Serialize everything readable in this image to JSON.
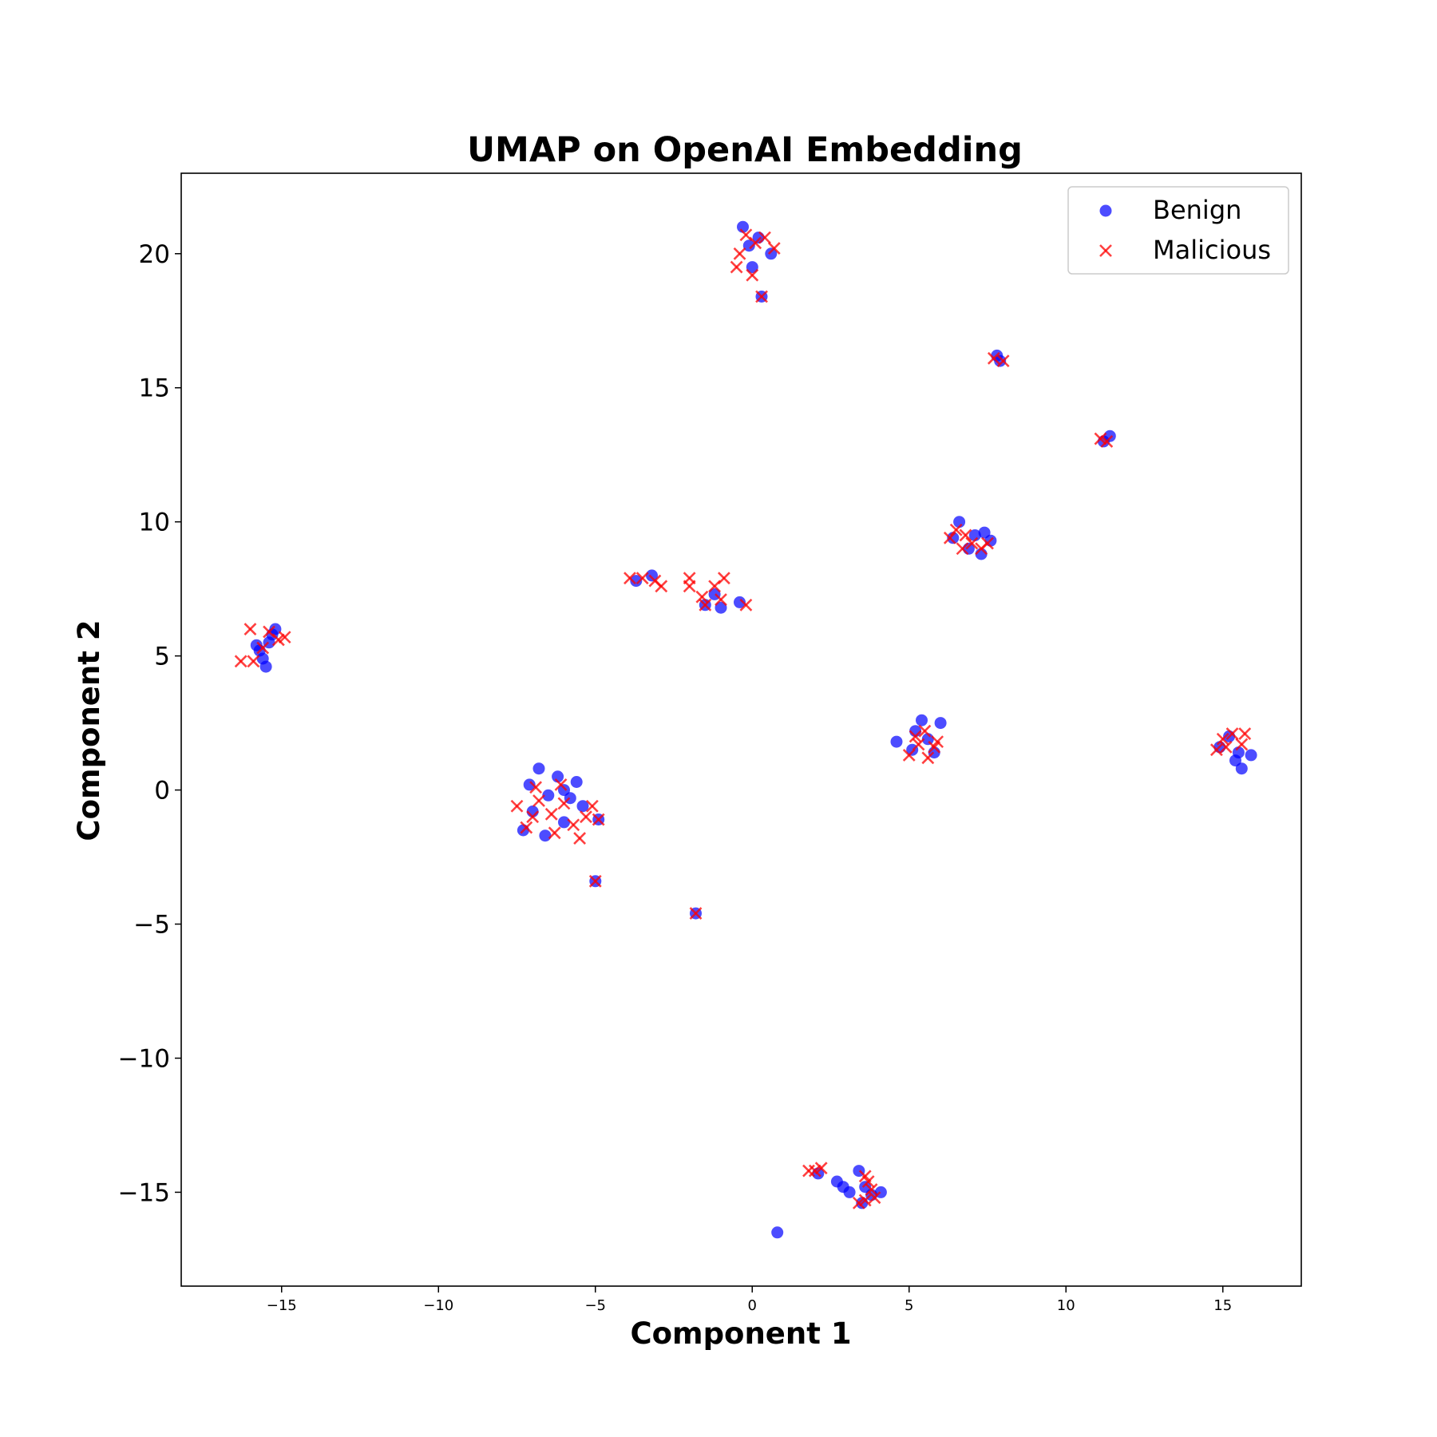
{
  "chart_data": {
    "type": "scatter",
    "title": "UMAP on OpenAI Embedding",
    "xlabel": "Component 1",
    "ylabel": "Component 2",
    "xlim": [
      -18.2,
      17.5
    ],
    "ylim": [
      -18.5,
      23.0
    ],
    "xticks": [
      -15,
      -10,
      -5,
      0,
      5,
      10,
      15
    ],
    "xtick_labels": [
      "−15",
      "−10",
      "−5",
      "0",
      "5",
      "10",
      "15"
    ],
    "yticks": [
      -15,
      -10,
      -5,
      0,
      5,
      10,
      15,
      20
    ],
    "ytick_labels": [
      "−15",
      "−10",
      "−5",
      "0",
      "5",
      "10",
      "15",
      "20"
    ],
    "grid": false,
    "legend_position": "upper right",
    "series": [
      {
        "name": "Benign",
        "marker": "circle",
        "color": "#0000ff",
        "points": [
          [
            -15.5,
            4.6
          ],
          [
            -15.7,
            5.2
          ],
          [
            -15.3,
            5.8
          ],
          [
            -15.2,
            6.0
          ],
          [
            -15.6,
            4.9
          ],
          [
            -15.4,
            5.5
          ],
          [
            -15.8,
            5.4
          ],
          [
            -7.0,
            -0.8
          ],
          [
            -6.5,
            -0.2
          ],
          [
            -6.0,
            -1.2
          ],
          [
            -5.6,
            0.3
          ],
          [
            -6.8,
            0.8
          ],
          [
            -7.3,
            -1.5
          ],
          [
            -6.2,
            0.5
          ],
          [
            -5.4,
            -0.6
          ],
          [
            -6.6,
            -1.7
          ],
          [
            -5.8,
            -0.3
          ],
          [
            -7.1,
            0.2
          ],
          [
            -6.0,
            0.0
          ],
          [
            -4.9,
            -1.1
          ],
          [
            -5.0,
            -3.4
          ],
          [
            -1.8,
            -4.6
          ],
          [
            -3.7,
            7.8
          ],
          [
            -3.2,
            8.0
          ],
          [
            -1.5,
            6.9
          ],
          [
            -1.0,
            6.8
          ],
          [
            -0.4,
            7.0
          ],
          [
            -1.2,
            7.3
          ],
          [
            -0.3,
            21.0
          ],
          [
            0.2,
            20.6
          ],
          [
            0.0,
            19.5
          ],
          [
            0.6,
            20.0
          ],
          [
            -0.1,
            20.3
          ],
          [
            0.3,
            18.4
          ],
          [
            7.8,
            16.2
          ],
          [
            7.9,
            16.0
          ],
          [
            11.2,
            13.0
          ],
          [
            11.4,
            13.2
          ],
          [
            6.6,
            10.0
          ],
          [
            6.4,
            9.4
          ],
          [
            6.9,
            9.0
          ],
          [
            7.3,
            8.8
          ],
          [
            7.6,
            9.3
          ],
          [
            7.1,
            9.5
          ],
          [
            7.4,
            9.6
          ],
          [
            4.6,
            1.8
          ],
          [
            5.2,
            2.2
          ],
          [
            5.4,
            2.6
          ],
          [
            6.0,
            2.5
          ],
          [
            5.8,
            1.4
          ],
          [
            5.1,
            1.5
          ],
          [
            5.6,
            1.9
          ],
          [
            14.9,
            1.6
          ],
          [
            15.2,
            2.0
          ],
          [
            15.5,
            1.4
          ],
          [
            15.6,
            0.8
          ],
          [
            15.9,
            1.3
          ],
          [
            15.4,
            1.1
          ],
          [
            2.1,
            -14.3
          ],
          [
            2.7,
            -14.6
          ],
          [
            2.9,
            -14.8
          ],
          [
            3.1,
            -15.0
          ],
          [
            3.4,
            -14.2
          ],
          [
            3.6,
            -14.8
          ],
          [
            3.8,
            -15.1
          ],
          [
            4.1,
            -15.0
          ],
          [
            3.5,
            -15.4
          ],
          [
            0.8,
            -16.5
          ]
        ]
      },
      {
        "name": "Malicious",
        "marker": "x",
        "color": "#ff0000",
        "points": [
          [
            -16.3,
            4.8
          ],
          [
            -15.9,
            4.8
          ],
          [
            -15.4,
            5.9
          ],
          [
            -15.1,
            5.6
          ],
          [
            -14.9,
            5.7
          ],
          [
            -15.6,
            5.3
          ],
          [
            -16.0,
            6.0
          ],
          [
            -7.5,
            -0.6
          ],
          [
            -7.2,
            -1.4
          ],
          [
            -6.8,
            -0.4
          ],
          [
            -6.4,
            -0.9
          ],
          [
            -6.0,
            -0.5
          ],
          [
            -5.7,
            -1.3
          ],
          [
            -5.3,
            -1.0
          ],
          [
            -5.1,
            -0.6
          ],
          [
            -6.9,
            0.1
          ],
          [
            -6.3,
            -1.6
          ],
          [
            -5.5,
            -1.8
          ],
          [
            -7.0,
            -1.0
          ],
          [
            -6.1,
            0.2
          ],
          [
            -4.9,
            -1.1
          ],
          [
            -5.0,
            -3.4
          ],
          [
            -1.8,
            -4.6
          ],
          [
            -3.9,
            7.9
          ],
          [
            -3.5,
            7.9
          ],
          [
            -3.1,
            7.8
          ],
          [
            -2.9,
            7.6
          ],
          [
            -2.0,
            7.6
          ],
          [
            -1.6,
            7.2
          ],
          [
            -1.2,
            7.6
          ],
          [
            -0.9,
            7.9
          ],
          [
            -1.5,
            6.9
          ],
          [
            -1.0,
            7.1
          ],
          [
            -0.2,
            6.9
          ],
          [
            -2.0,
            7.9
          ],
          [
            -0.4,
            20.0
          ],
          [
            -0.5,
            19.5
          ],
          [
            0.1,
            20.4
          ],
          [
            0.4,
            20.6
          ],
          [
            0.7,
            20.2
          ],
          [
            0.0,
            19.2
          ],
          [
            -0.2,
            20.7
          ],
          [
            0.3,
            18.4
          ],
          [
            7.7,
            16.1
          ],
          [
            8.0,
            16.0
          ],
          [
            11.1,
            13.1
          ],
          [
            11.3,
            13.0
          ],
          [
            6.3,
            9.4
          ],
          [
            6.5,
            9.7
          ],
          [
            6.7,
            9.0
          ],
          [
            7.0,
            9.2
          ],
          [
            7.3,
            9.0
          ],
          [
            6.8,
            9.5
          ],
          [
            7.5,
            9.2
          ],
          [
            5.0,
            1.3
          ],
          [
            5.3,
            1.7
          ],
          [
            5.5,
            2.2
          ],
          [
            5.8,
            1.6
          ],
          [
            5.2,
            2.0
          ],
          [
            5.6,
            1.2
          ],
          [
            5.9,
            1.8
          ],
          [
            14.8,
            1.5
          ],
          [
            15.0,
            1.9
          ],
          [
            15.3,
            2.1
          ],
          [
            15.6,
            1.7
          ],
          [
            15.7,
            2.1
          ],
          [
            15.1,
            1.6
          ],
          [
            1.8,
            -14.2
          ],
          [
            2.0,
            -14.2
          ],
          [
            2.2,
            -14.1
          ],
          [
            3.6,
            -14.4
          ],
          [
            3.7,
            -14.6
          ],
          [
            3.8,
            -14.9
          ],
          [
            3.6,
            -15.3
          ],
          [
            3.4,
            -15.4
          ],
          [
            3.9,
            -15.2
          ]
        ]
      }
    ]
  }
}
